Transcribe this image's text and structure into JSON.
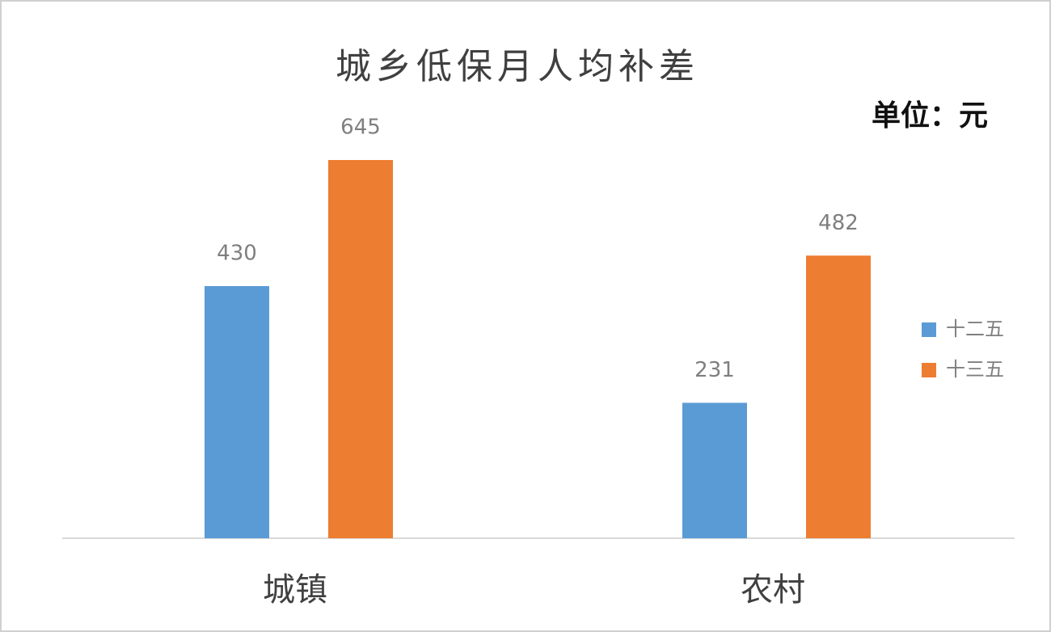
{
  "chart_data": {
    "type": "bar",
    "title": "城乡低保月人均补差",
    "unit": "单位：元",
    "categories": [
      "城镇",
      "农村"
    ],
    "series": [
      {
        "name": "十二五",
        "color": "#5b9bd5",
        "values": [
          430,
          231
        ]
      },
      {
        "name": "十三五",
        "color": "#ed7d31",
        "values": [
          645,
          482
        ]
      }
    ]
  }
}
